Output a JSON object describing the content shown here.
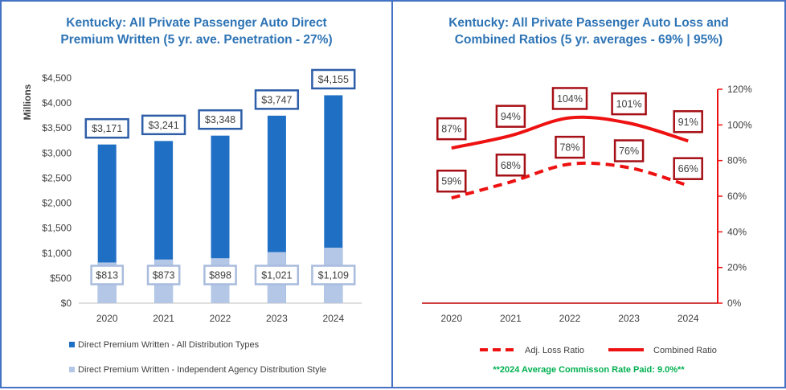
{
  "chart_data": [
    {
      "type": "bar",
      "title_line1": "Kentucky: All Private Passenger Auto Direct",
      "title_line2": "Premium Written (5 yr. ave. Penetration - 27%)",
      "ylabel": "Millions",
      "categories": [
        "2020",
        "2021",
        "2022",
        "2023",
        "2024"
      ],
      "ylim": [
        0,
        4500
      ],
      "yticks": [
        "$0",
        "$500",
        "$1,000",
        "$1,500",
        "$2,000",
        "$2,500",
        "$3,000",
        "$3,500",
        "$4,000",
        "$4,500"
      ],
      "series": [
        {
          "name": "Direct Premium Written - All Distribution Types",
          "color": "#1F6FC5",
          "values": [
            3171,
            3241,
            3348,
            3747,
            4155
          ],
          "labels": [
            "$3,171",
            "$3,241",
            "$3,348",
            "$3,747",
            "$4,155"
          ]
        },
        {
          "name": "Direct Premium Written - Independent Agency Distribution Style",
          "color": "#B4C7E7",
          "values": [
            813,
            873,
            898,
            1021,
            1109
          ],
          "labels": [
            "$813",
            "$873",
            "$898",
            "$1,021",
            "$1,109"
          ]
        }
      ]
    },
    {
      "type": "line",
      "title_line1": "Kentucky: All Private Passenger Auto Loss and",
      "title_line2": "Combined Ratios (5 yr. averages - 69% | 95%)",
      "categories": [
        "2020",
        "2021",
        "2022",
        "2023",
        "2024"
      ],
      "ylim": [
        0,
        120
      ],
      "yticks": [
        "0%",
        "20%",
        "40%",
        "60%",
        "80%",
        "100%",
        "120%"
      ],
      "series": [
        {
          "name": "Adj. Loss Ratio",
          "color": "#EE1111",
          "dashed": true,
          "values": [
            59,
            68,
            78,
            76,
            66
          ],
          "labels": [
            "59%",
            "68%",
            "78%",
            "76%",
            "66%"
          ]
        },
        {
          "name": "Combined Ratio",
          "color": "#EE1111",
          "dashed": false,
          "values": [
            87,
            94,
            104,
            101,
            91
          ],
          "labels": [
            "87%",
            "94%",
            "104%",
            "101%",
            "91%"
          ]
        }
      ],
      "footnote": "**2024 Average Commisson Rate Paid: 9.0%**"
    }
  ]
}
